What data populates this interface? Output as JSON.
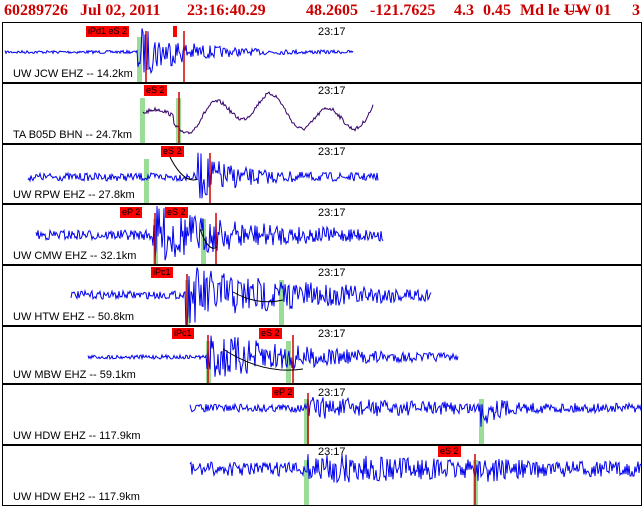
{
  "header": {
    "event_id": "60289726",
    "date": "Jul 02, 2011",
    "time": "23:16:40.29",
    "lat": "48.2605",
    "lon": "-121.7625",
    "depth": "4.3",
    "magnitude": "0.45",
    "mag_type": "Md le ---",
    "network": "UW 01",
    "page": "3"
  },
  "colors": {
    "header_text": "#cc0000",
    "trace_default": "#0000ee",
    "trace_broadband": "#330066",
    "pick_box": "#ff0000",
    "pick_line": "#cc0000",
    "window_marker": "#99dd99"
  },
  "panels": [
    {
      "label": "UW JCW EHZ -- 14.2km",
      "time_mark": "23:17",
      "trace_color": "#0000ee",
      "picks": [
        {
          "text": "iPd1 eS 2"
        },
        {
          "text": ""
        }
      ]
    },
    {
      "label": "TA B05D BHN -- 24.7km",
      "time_mark": "23:17",
      "trace_color": "#330066",
      "picks": [
        {
          "text": "eS 2"
        }
      ]
    },
    {
      "label": "UW RPW EHZ -- 27.8km",
      "time_mark": "23:17",
      "trace_color": "#0000ee",
      "picks": [
        {
          "text": "eS 2"
        }
      ]
    },
    {
      "label": "UW CMW EHZ -- 32.1km",
      "time_mark": "23:17",
      "trace_color": "#0000ee",
      "picks": [
        {
          "text": "eP 2"
        },
        {
          "text": "eS 2"
        }
      ]
    },
    {
      "label": "UW HTW EHZ -- 50.8km",
      "time_mark": "23:17",
      "trace_color": "#0000ee",
      "picks": [
        {
          "text": "iPc1"
        }
      ]
    },
    {
      "label": "UW MBW EHZ -- 59.1km",
      "time_mark": "23:17",
      "trace_color": "#0000ee",
      "picks": [
        {
          "text": "iPc1"
        },
        {
          "text": "eS 2"
        }
      ]
    },
    {
      "label": "UW HDW EHZ -- 117.9km",
      "time_mark": "23:17",
      "trace_color": "#0000ee",
      "picks": [
        {
          "text": "eP 2"
        }
      ]
    },
    {
      "label": "UW HDW EH2 -- 117.9km",
      "time_mark": "23:17",
      "trace_color": "#0000ee",
      "picks": [
        {
          "text": "eS 2"
        }
      ]
    }
  ]
}
